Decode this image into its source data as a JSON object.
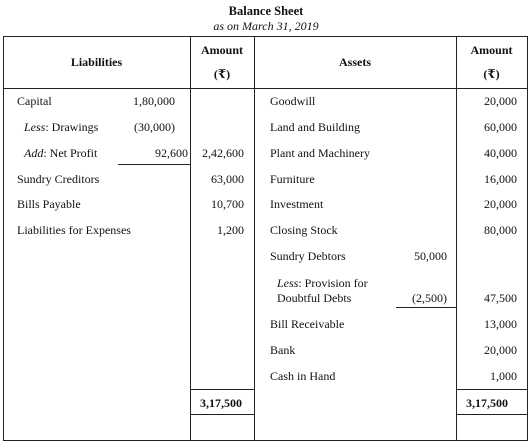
{
  "title": "Balance Sheet",
  "subtitle": "as on March 31, 2019",
  "header": {
    "liabilities": "Liabilities",
    "amount": "Amount",
    "rupee": "(₹)",
    "assets": "Assets"
  },
  "liabilities": {
    "capital": {
      "label": "Capital",
      "value": "1,80,000"
    },
    "drawings": {
      "prefix": "Less",
      "label": ": Drawings",
      "value": "(30,000)"
    },
    "net_profit": {
      "prefix": "Add",
      "label": ": Net Profit",
      "value": "92,600",
      "total": "2,42,600"
    },
    "sundry_creditors": {
      "label": "Sundry Creditors",
      "amount": "63,000"
    },
    "bills_payable": {
      "label": "Bills Payable",
      "amount": "10,700"
    },
    "liabilities_expenses": {
      "label": "Liabilities for Expenses",
      "amount": "1,200"
    }
  },
  "assets": {
    "goodwill": {
      "label": "Goodwill",
      "amount": "20,000"
    },
    "land": {
      "label": "Land and Building",
      "amount": "60,000"
    },
    "plant": {
      "label": "Plant and Machinery",
      "amount": "40,000"
    },
    "furniture": {
      "label": "Furniture",
      "amount": "16,000"
    },
    "investment": {
      "label": "Investment",
      "amount": "20,000"
    },
    "closing_stock": {
      "label": "Closing Stock",
      "amount": "80,000"
    },
    "sundry_debtors": {
      "label": "Sundry Debtors",
      "value": "50,000"
    },
    "provision": {
      "prefix": "Less",
      "label1": ": Provision for",
      "label2": "Doubtful Debts",
      "value": "(2,500)",
      "amount": "47,500"
    },
    "bill_receivable": {
      "label": "Bill Receivable",
      "amount": "13,000"
    },
    "bank": {
      "label": "Bank",
      "amount": "20,000"
    },
    "cash": {
      "label": "Cash in Hand",
      "amount": "1,000"
    }
  },
  "totals": {
    "left": "3,17,500",
    "right": "3,17,500"
  }
}
